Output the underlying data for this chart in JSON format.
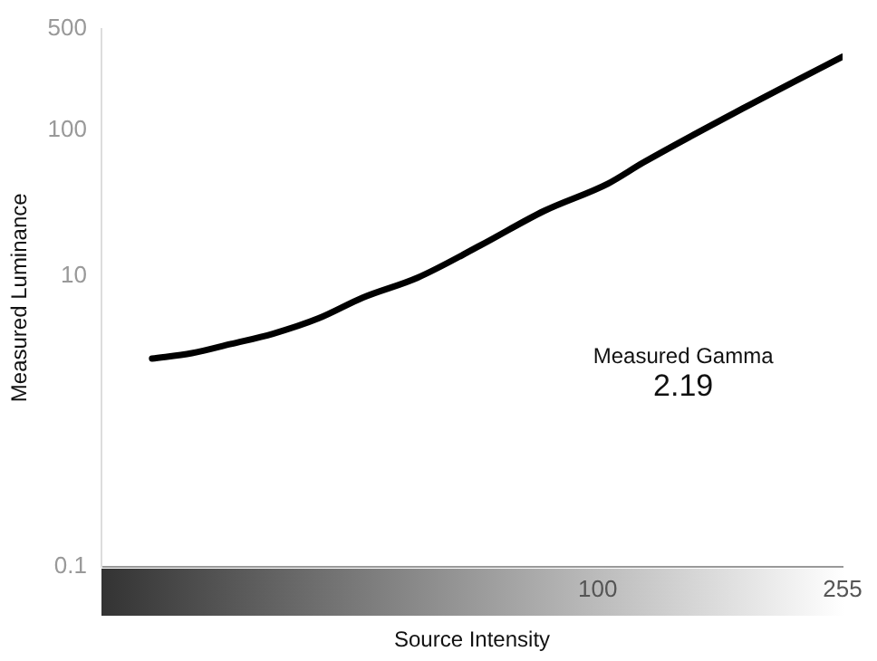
{
  "chart_data": {
    "type": "line",
    "xlabel": "Source Intensity",
    "ylabel": "Measured Luminance",
    "annotations": [
      "Measured Gamma",
      "2.19"
    ],
    "log": "xy",
    "xlim": [
      15,
      255
    ],
    "xticks": [
      100,
      255
    ],
    "ylim": [
      0.1,
      500
    ],
    "yticks": [
      0.1,
      10,
      100,
      500
    ],
    "grid": false,
    "legend": false,
    "marker": "none",
    "line_style": "solid",
    "series": [
      {
        "color": "#000000",
        "x": [
          18.2,
          21.2,
          24.6,
          28.9,
          34.4,
          40.8,
          50.2,
          63.9,
          81.6,
          104,
          119,
          174,
          255
        ],
        "values": [
          2.7,
          2.94,
          3.4,
          4.0,
          5.1,
          7.1,
          9.7,
          16.2,
          28,
          43,
          60,
          141,
          321
        ]
      }
    ]
  }
}
